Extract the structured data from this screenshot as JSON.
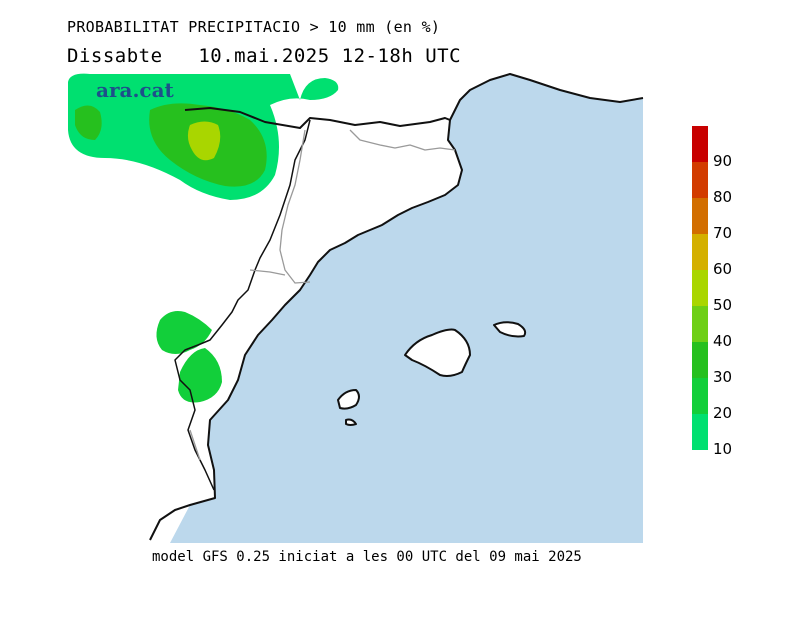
{
  "title": "PROBABILITAT PRECIPITACIO > 10 mm (en %)",
  "day": "Dissabte",
  "date": "10.mai.2025",
  "period": "12-18h UTC",
  "watermark": "ara.cat",
  "footer": "model GFS 0.25 iniciat a les 00 UTC del 09 mai 2025",
  "sea_color": "#bcd8ec",
  "land_color": "#ffffff",
  "colorbar": {
    "levels": [
      {
        "label": "",
        "color": "#c80000"
      },
      {
        "label": "90",
        "color": "#d23c00"
      },
      {
        "label": "80",
        "color": "#d26e00"
      },
      {
        "label": "70",
        "color": "#d4b000"
      },
      {
        "label": "60",
        "color": "#a9d600"
      },
      {
        "label": "50",
        "color": "#6ecf16"
      },
      {
        "label": "40",
        "color": "#26c01e"
      },
      {
        "label": "30",
        "color": "#12cf3a"
      },
      {
        "label": "20",
        "color": "#00e070"
      },
      {
        "label": "10",
        "color": ""
      }
    ]
  }
}
